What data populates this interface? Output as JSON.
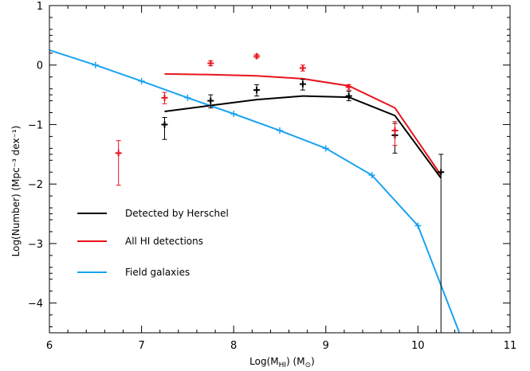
{
  "chart_data": {
    "type": "line",
    "title": "",
    "xlabel": "Log(M_HI) (M_⊙)",
    "xlabel_main": "Log(M",
    "xlabel_sub": "HI",
    "xlabel_rest": ") (M",
    "xlabel_sub2": "⊙",
    "xlabel_end": ")",
    "ylabel": "Log(Number) (Mpc⁻³ dex⁻¹)",
    "xlim": [
      6,
      11
    ],
    "ylim": [
      -4.5,
      1
    ],
    "xticks": [
      6,
      7,
      8,
      9,
      10,
      11
    ],
    "yticks": [
      1,
      0,
      -1,
      -2,
      -3,
      -4
    ],
    "ytick_labels": [
      "1",
      "0",
      "−1",
      "−2",
      "−3",
      "−4"
    ],
    "legend": {
      "placement": "lower-left",
      "entries": [
        {
          "label": "Detected by Herschel",
          "color": "#000000"
        },
        {
          "label": "All HI detections",
          "color": "#e8141e"
        },
        {
          "label": "Field galaxies",
          "color": "#1aa3f0"
        }
      ]
    },
    "series": [
      {
        "name": "Field galaxies",
        "color": "#1aa3f0",
        "x": [
          6.0,
          6.5,
          7.0,
          7.5,
          8.0,
          8.5,
          9.0,
          9.5,
          10.0,
          10.45
        ],
        "y": [
          0.25,
          0.0,
          -0.27,
          -0.55,
          -0.82,
          -1.1,
          -1.4,
          -1.85,
          -2.7,
          -4.5
        ],
        "markers": [
          6.5,
          7.0,
          7.5,
          8.0,
          8.5,
          9.0,
          9.5,
          10.0
        ]
      },
      {
        "name": "Detected by Herschel",
        "color": "#000000",
        "x": [
          7.25,
          7.75,
          8.25,
          8.75,
          9.25,
          9.75,
          10.25
        ],
        "y": [
          -0.78,
          -0.68,
          -0.58,
          -0.52,
          -0.54,
          -0.85,
          -1.9
        ]
      },
      {
        "name": "All HI detections",
        "color": "#e8141e",
        "x": [
          7.25,
          7.75,
          8.25,
          8.75,
          9.25,
          9.75,
          10.25
        ],
        "y": [
          -0.15,
          -0.16,
          -0.18,
          -0.23,
          -0.35,
          -0.72,
          -1.85
        ]
      }
    ],
    "points": [
      {
        "name": "Detected by Herschel",
        "color": "#000000",
        "data": [
          {
            "x": 7.25,
            "y": -1.0,
            "lo": -1.25,
            "hi": -0.88
          },
          {
            "x": 7.75,
            "y": -0.6,
            "lo": -0.72,
            "hi": -0.5
          },
          {
            "x": 8.25,
            "y": -0.42,
            "lo": -0.52,
            "hi": -0.33
          },
          {
            "x": 8.75,
            "y": -0.32,
            "lo": -0.42,
            "hi": -0.24
          },
          {
            "x": 9.25,
            "y": -0.52,
            "lo": -0.6,
            "hi": -0.44
          },
          {
            "x": 9.75,
            "y": -1.18,
            "lo": -1.48,
            "hi": -0.98
          },
          {
            "x": 10.25,
            "y": -1.8,
            "lo": -4.5,
            "hi": -1.5
          }
        ]
      },
      {
        "name": "All HI detections",
        "color": "#e8141e",
        "data": [
          {
            "x": 6.75,
            "y": -1.48,
            "lo": -2.02,
            "hi": -1.27
          },
          {
            "x": 7.25,
            "y": -0.55,
            "lo": -0.65,
            "hi": -0.46
          },
          {
            "x": 7.75,
            "y": 0.03,
            "lo": -0.01,
            "hi": 0.07
          },
          {
            "x": 8.25,
            "y": 0.15,
            "lo": 0.12,
            "hi": 0.18
          },
          {
            "x": 8.75,
            "y": -0.05,
            "lo": -0.1,
            "hi": 0.0
          },
          {
            "x": 9.25,
            "y": -0.37,
            "lo": -0.42,
            "hi": -0.33
          },
          {
            "x": 9.75,
            "y": -1.1,
            "lo": -1.35,
            "hi": -0.95
          }
        ]
      }
    ]
  }
}
